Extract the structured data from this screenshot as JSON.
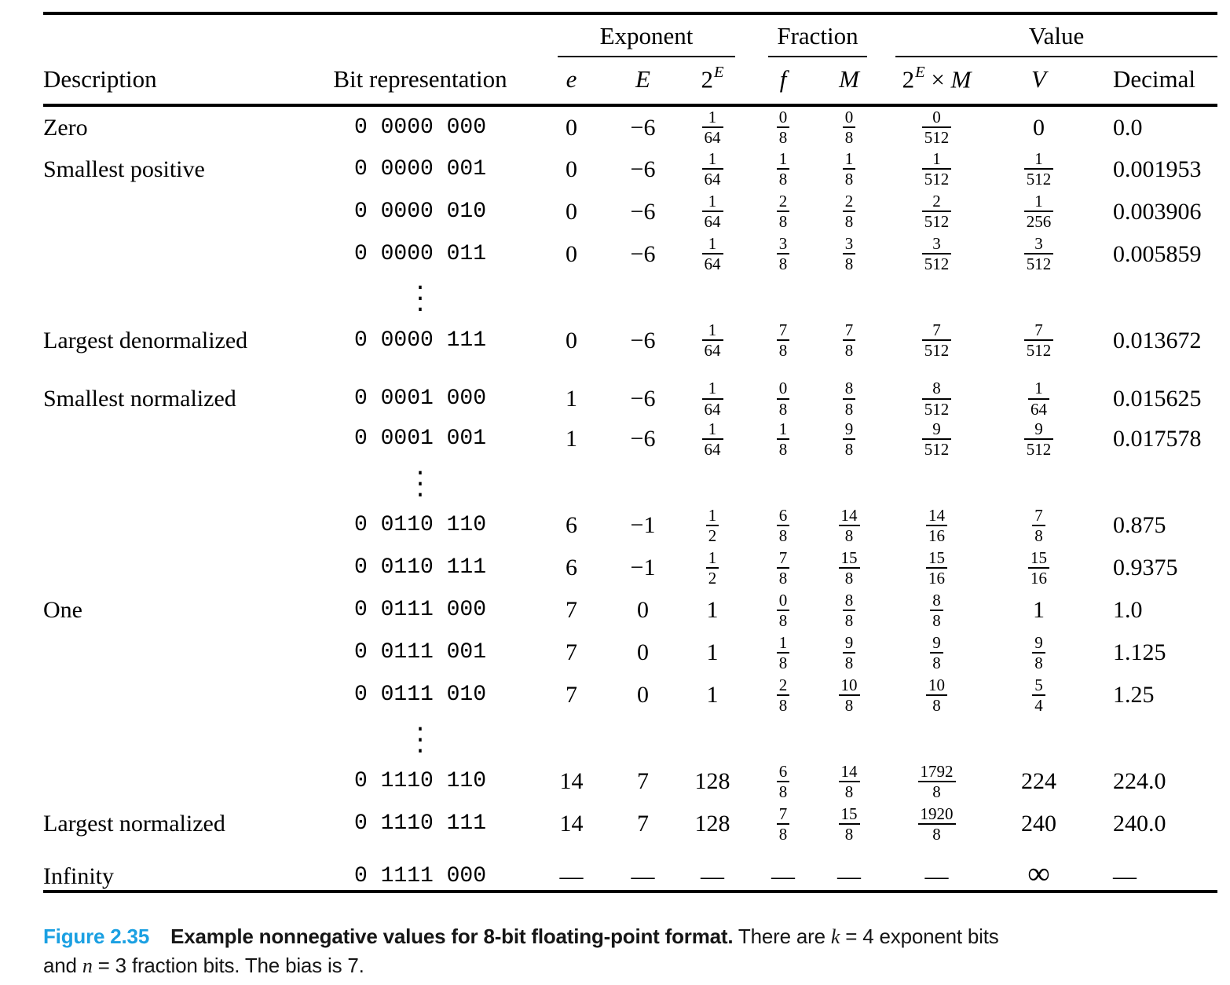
{
  "colors": {
    "background": "#ffffff",
    "text": "#000000",
    "figure_label_blue": "#1ba0e2",
    "rule": "#000000"
  },
  "table": {
    "groups": [
      {
        "label": "",
        "span": 2
      },
      {
        "label": "Exponent",
        "span": 3
      },
      {
        "label": "Fraction",
        "span": 2
      },
      {
        "label": "Value",
        "span": 3
      }
    ],
    "columns": [
      {
        "label": "Description",
        "kind": "plain"
      },
      {
        "label": "Bit representation",
        "kind": "plain"
      },
      {
        "label": "e",
        "kind": "math"
      },
      {
        "label": "E",
        "kind": "math"
      },
      {
        "label": "2E",
        "kind": "pow",
        "base": "2",
        "sup": "E"
      },
      {
        "label": "f",
        "kind": "math"
      },
      {
        "label": "M",
        "kind": "math"
      },
      {
        "label": "2E x M",
        "kind": "powmul",
        "base": "2",
        "sup": "E",
        "times": "×",
        "mul": "M"
      },
      {
        "label": "V",
        "kind": "math"
      },
      {
        "label": "Decimal",
        "kind": "plain"
      }
    ],
    "rows": [
      {
        "desc": "Zero",
        "bits": "0 0000 000",
        "e": "0",
        "E": "−6",
        "pow": [
          "1",
          "64"
        ],
        "f": [
          "0",
          "8"
        ],
        "M": [
          "0",
          "8"
        ],
        "prod": [
          "0",
          "512"
        ],
        "V": "0",
        "dec": "0.0"
      },
      {
        "desc": "Smallest positive",
        "bits": "0 0000 001",
        "e": "0",
        "E": "−6",
        "pow": [
          "1",
          "64"
        ],
        "f": [
          "1",
          "8"
        ],
        "M": [
          "1",
          "8"
        ],
        "prod": [
          "1",
          "512"
        ],
        "V": [
          "1",
          "512"
        ],
        "dec": "0.001953"
      },
      {
        "desc": "",
        "bits": "0 0000 010",
        "e": "0",
        "E": "−6",
        "pow": [
          "1",
          "64"
        ],
        "f": [
          "2",
          "8"
        ],
        "M": [
          "2",
          "8"
        ],
        "prod": [
          "2",
          "512"
        ],
        "V": [
          "1",
          "256"
        ],
        "dec": "0.003906"
      },
      {
        "desc": "",
        "bits": "0 0000 011",
        "e": "0",
        "E": "−6",
        "pow": [
          "1",
          "64"
        ],
        "f": [
          "3",
          "8"
        ],
        "M": [
          "3",
          "8"
        ],
        "prod": [
          "3",
          "512"
        ],
        "V": [
          "3",
          "512"
        ],
        "dec": "0.005859"
      },
      {
        "dots": true
      },
      {
        "desc": "Largest denormalized",
        "bits": "0 0000 111",
        "e": "0",
        "E": "−6",
        "pow": [
          "1",
          "64"
        ],
        "f": [
          "7",
          "8"
        ],
        "M": [
          "7",
          "8"
        ],
        "prod": [
          "7",
          "512"
        ],
        "V": [
          "7",
          "512"
        ],
        "dec": "0.013672"
      },
      {
        "desc": "Smallest normalized",
        "bits": "0 0001 000",
        "e": "1",
        "E": "−6",
        "pow": [
          "1",
          "64"
        ],
        "f": [
          "0",
          "8"
        ],
        "M": [
          "8",
          "8"
        ],
        "prod": [
          "8",
          "512"
        ],
        "V": [
          "1",
          "64"
        ],
        "dec": "0.015625",
        "pad": true
      },
      {
        "desc": "",
        "bits": "0 0001 001",
        "e": "1",
        "E": "−6",
        "pow": [
          "1",
          "64"
        ],
        "f": [
          "1",
          "8"
        ],
        "M": [
          "9",
          "8"
        ],
        "prod": [
          "9",
          "512"
        ],
        "V": [
          "9",
          "512"
        ],
        "dec": "0.017578"
      },
      {
        "dots": true
      },
      {
        "desc": "",
        "bits": "0 0110 110",
        "e": "6",
        "E": "−1",
        "pow": [
          "1",
          "2"
        ],
        "f": [
          "6",
          "8"
        ],
        "M": [
          "14",
          "8"
        ],
        "prod": [
          "14",
          "16"
        ],
        "V": [
          "7",
          "8"
        ],
        "dec": "0.875"
      },
      {
        "desc": "",
        "bits": "0 0110 111",
        "e": "6",
        "E": "−1",
        "pow": [
          "1",
          "2"
        ],
        "f": [
          "7",
          "8"
        ],
        "M": [
          "15",
          "8"
        ],
        "prod": [
          "15",
          "16"
        ],
        "V": [
          "15",
          "16"
        ],
        "dec": "0.9375"
      },
      {
        "desc": "One",
        "bits": "0 0111 000",
        "e": "7",
        "E": "0",
        "pow": "1",
        "f": [
          "0",
          "8"
        ],
        "M": [
          "8",
          "8"
        ],
        "prod": [
          "8",
          "8"
        ],
        "V": "1",
        "dec": "1.0"
      },
      {
        "desc": "",
        "bits": "0 0111 001",
        "e": "7",
        "E": "0",
        "pow": "1",
        "f": [
          "1",
          "8"
        ],
        "M": [
          "9",
          "8"
        ],
        "prod": [
          "9",
          "8"
        ],
        "V": [
          "9",
          "8"
        ],
        "dec": "1.125"
      },
      {
        "desc": "",
        "bits": "0 0111 010",
        "e": "7",
        "E": "0",
        "pow": "1",
        "f": [
          "2",
          "8"
        ],
        "M": [
          "10",
          "8"
        ],
        "prod": [
          "10",
          "8"
        ],
        "V": [
          "5",
          "4"
        ],
        "dec": "1.25"
      },
      {
        "dots": true
      },
      {
        "desc": "",
        "bits": "0 1110 110",
        "e": "14",
        "E": "7",
        "pow": "128",
        "f": [
          "6",
          "8"
        ],
        "M": [
          "14",
          "8"
        ],
        "prod": [
          "1792",
          "8"
        ],
        "V": "224",
        "dec": "224.0"
      },
      {
        "desc": "Largest normalized",
        "bits": "0 1110 111",
        "e": "14",
        "E": "7",
        "pow": "128",
        "f": [
          "7",
          "8"
        ],
        "M": [
          "15",
          "8"
        ],
        "prod": [
          "1920",
          "8"
        ],
        "V": "240",
        "dec": "240.0"
      },
      {
        "desc": "Infinity",
        "bits": "0 1111 000",
        "e": "—",
        "E": "—",
        "pow": "—",
        "f": "—",
        "M": "—",
        "prod": "—",
        "V": "∞",
        "dec": "—",
        "pad": true
      }
    ],
    "ellipsis_glyph": "..."
  },
  "caption": {
    "label": "Figure 2.35",
    "segments": [
      {
        "style": "bold",
        "text": "Example nonnegative values for 8-bit floating-point format."
      },
      {
        "style": "normal",
        "text": " There are "
      },
      {
        "style": "mathvar",
        "text": "k"
      },
      {
        "style": "normal",
        "text": " = 4 exponent bits"
      },
      {
        "style": "br"
      },
      {
        "style": "normal",
        "text": "and "
      },
      {
        "style": "mathvar",
        "text": "n"
      },
      {
        "style": "normal",
        "text": " = 3 fraction bits. The bias is 7."
      }
    ]
  }
}
